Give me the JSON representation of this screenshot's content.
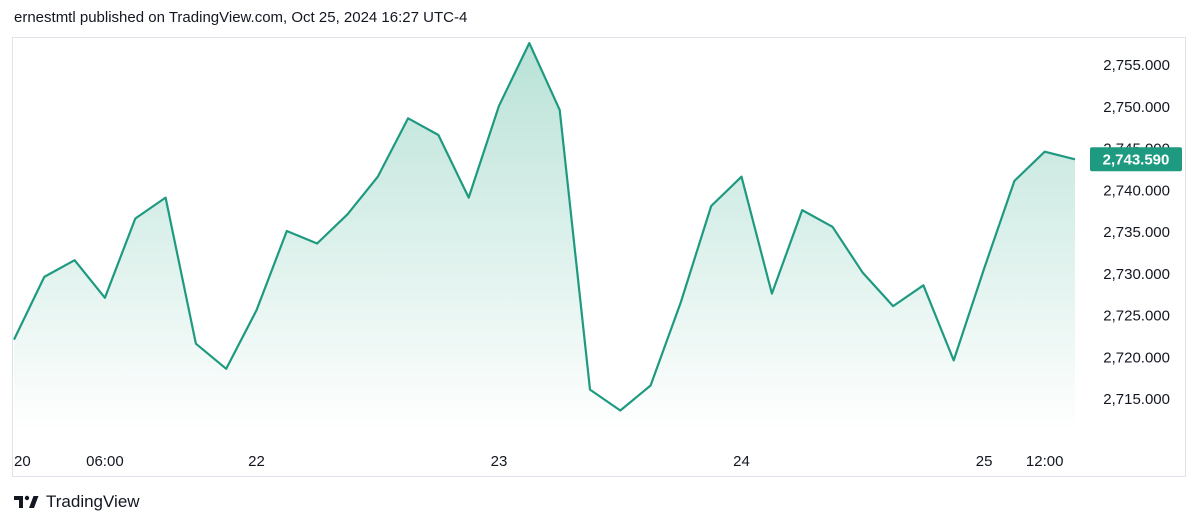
{
  "header": {
    "text": "ernestmtl published on TradingView.com, Oct 25, 2024 16:27 UTC-4"
  },
  "footer": {
    "brand": "TradingView",
    "logo_icon": "tradingview-logo-icon"
  },
  "colors": {
    "line": "#1e9a80",
    "fill_top": "#b9e2d7",
    "fill_bottom": "#ffffff",
    "badge_bg": "#1e9a80",
    "badge_text": "#ffffff",
    "axis_text": "#131722"
  },
  "chart_data": {
    "type": "area",
    "x_tick_labels": [
      "20",
      "06:00",
      "22",
      "23",
      "24",
      "25",
      "12:00"
    ],
    "y_tick_labels": [
      "2,715.000",
      "2,720.000",
      "2,725.000",
      "2,730.000",
      "2,735.000",
      "2,740.000",
      "2,745.000",
      "2,750.000",
      "2,755.000"
    ],
    "y_ticks": [
      2715,
      2720,
      2725,
      2730,
      2735,
      2740,
      2745,
      2750,
      2755
    ],
    "ylim": [
      2709,
      2759
    ],
    "last_price": 2743.59,
    "last_price_label": "2,743.590",
    "x": [
      "20",
      "",
      "",
      "06:00",
      "",
      "",
      "",
      "",
      "22",
      "",
      "",
      "",
      "",
      "",
      "",
      "",
      "23",
      "",
      "",
      "",
      "",
      "",
      "",
      "",
      "24",
      "",
      "",
      "",
      "",
      "",
      "",
      "",
      "25",
      "",
      "12:00",
      ""
    ],
    "values": [
      2722.0,
      2729.5,
      2731.5,
      2727.0,
      2736.5,
      2739.0,
      2721.5,
      2718.5,
      2725.5,
      2735.0,
      2733.5,
      2737.0,
      2741.5,
      2748.5,
      2746.5,
      2739.0,
      2750.0,
      2757.5,
      2749.5,
      2716.0,
      2713.5,
      2716.5,
      2726.5,
      2738.0,
      2741.5,
      2727.5,
      2737.5,
      2735.5,
      2730.0,
      2726.0,
      2728.5,
      2719.5,
      2730.5,
      2741.0,
      2744.5,
      2743.59
    ],
    "grid": false
  }
}
